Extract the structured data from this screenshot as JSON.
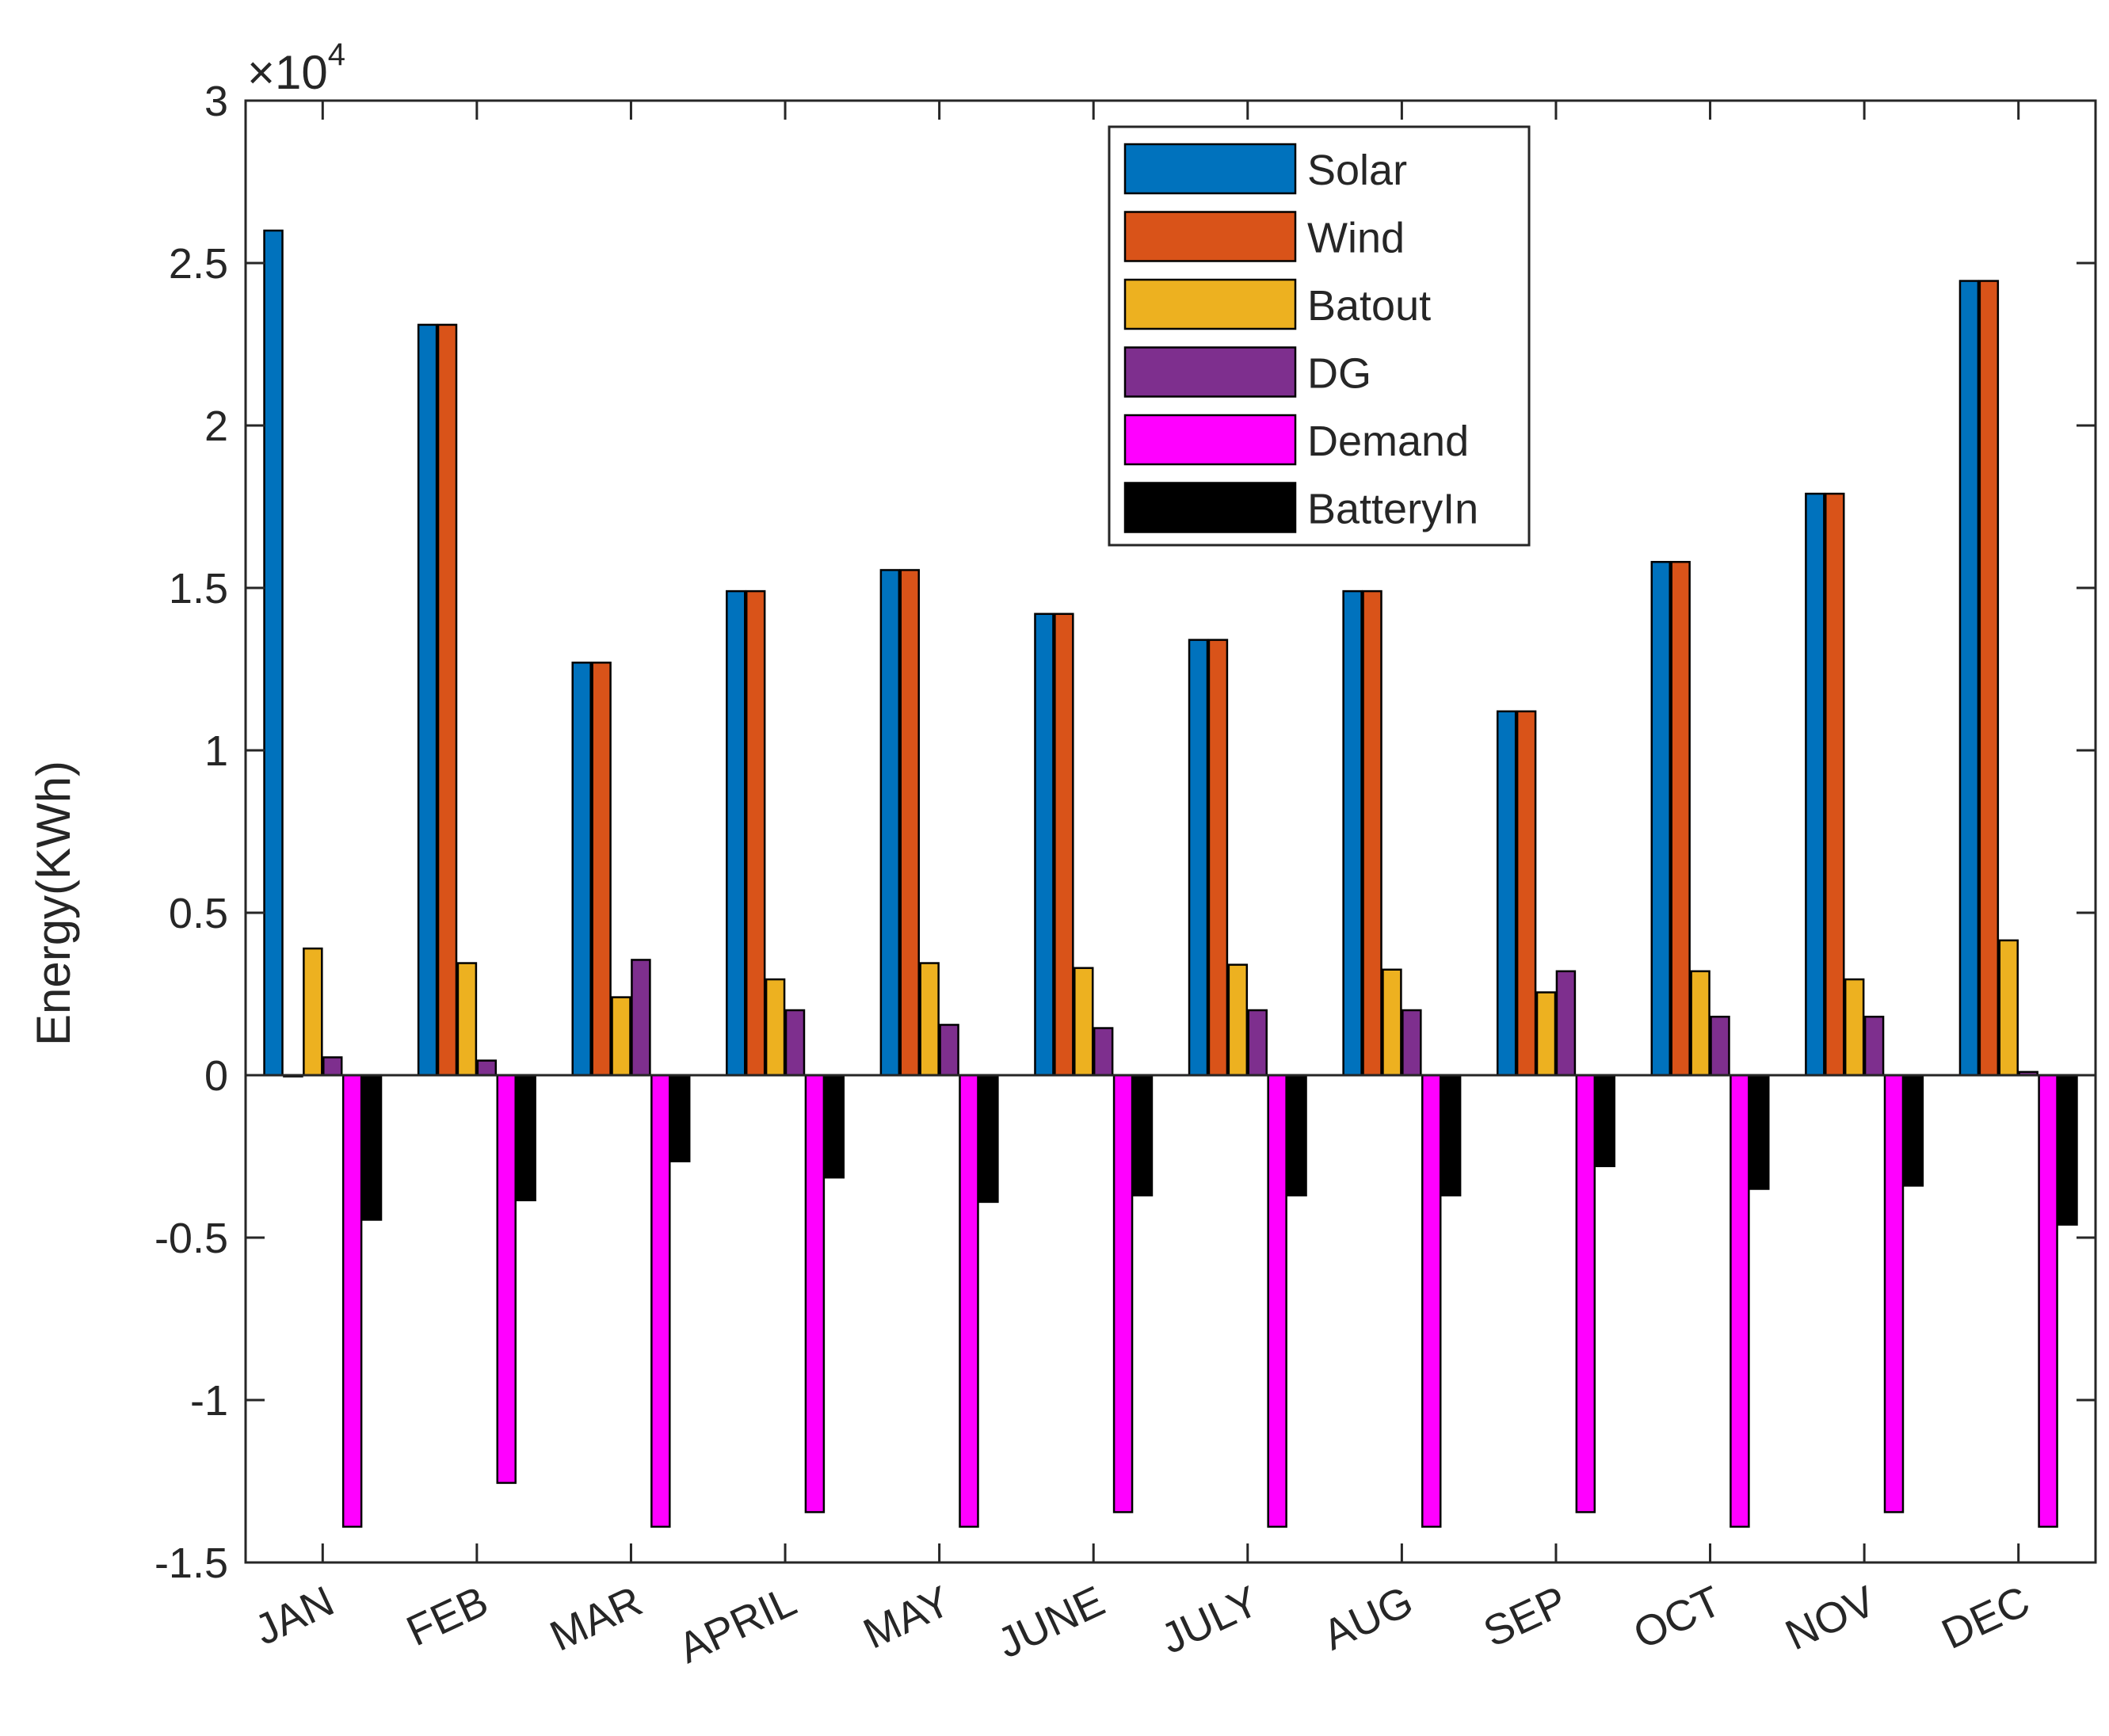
{
  "chart_data": {
    "type": "bar",
    "title": "",
    "xlabel": "",
    "ylabel": "Energy(KWh)",
    "exponent_label": "×10",
    "exponent_power": "4",
    "ylim": [
      -1.5,
      3
    ],
    "yticks": [
      "-1.5",
      "-1",
      "-0.5",
      "0",
      "0.5",
      "1",
      "1.5",
      "2",
      "2.5",
      "3"
    ],
    "ytick_values": [
      -1.5,
      -1,
      -0.5,
      0,
      0.5,
      1,
      1.5,
      2,
      2.5,
      3
    ],
    "value_scale": 10000,
    "categories": [
      "JAN",
      "FEB",
      "MAR",
      "APRIL",
      "MAY",
      "JUNE",
      "JULY",
      "AUG",
      "SEP",
      "OCT",
      "NOV",
      "DEC"
    ],
    "legend_position": "top-right",
    "series": [
      {
        "name": "Solar",
        "color": "#0072BD",
        "values": [
          26000,
          23100,
          12700,
          14900,
          15550,
          14200,
          13400,
          14900,
          11200,
          15800,
          17900,
          24450
        ]
      },
      {
        "name": "Wind",
        "color": "#D95319",
        "values": [
          0,
          23100,
          12700,
          14900,
          15550,
          14200,
          13400,
          14900,
          11200,
          15800,
          17900,
          24450
        ]
      },
      {
        "name": "Batout",
        "color": "#EDB120",
        "values": [
          3900,
          3450,
          2400,
          2950,
          3450,
          3300,
          3400,
          3250,
          2550,
          3200,
          2950,
          4150
        ]
      },
      {
        "name": "DG",
        "color": "#7E2F8E",
        "values": [
          550,
          450,
          3550,
          2000,
          1550,
          1450,
          2000,
          2000,
          3200,
          1800,
          1800,
          100
        ]
      },
      {
        "name": "Demand",
        "color": "#FF00FF",
        "values": [
          -13900,
          -12550,
          -13900,
          -13450,
          -13900,
          -13450,
          -13900,
          -13900,
          -13450,
          -13900,
          -13450,
          -13900
        ]
      },
      {
        "name": "BatteryIn",
        "color": "#000000",
        "values": [
          -4450,
          -3850,
          -2650,
          -3150,
          -3900,
          -3700,
          -3700,
          -3700,
          -2800,
          -3500,
          -3400,
          -4600
        ]
      }
    ]
  }
}
